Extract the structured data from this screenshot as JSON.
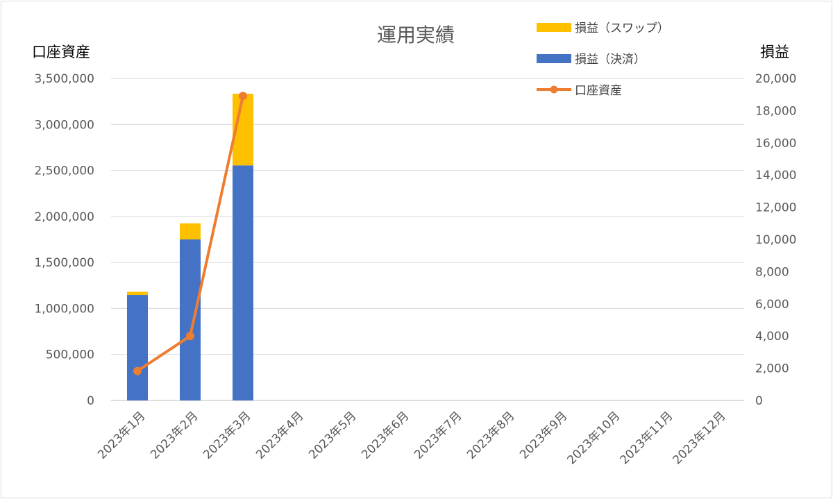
{
  "chart_data": {
    "type": "bar",
    "title": "運用実績",
    "categories": [
      "2023年1月",
      "2023年2月",
      "2023年3月",
      "2023年4月",
      "2023年5月",
      "2023年6月",
      "2023年7月",
      "2023年8月",
      "2023年9月",
      "2023年10月",
      "2023年11月",
      "2023年12月"
    ],
    "y_left": {
      "label": "口座資産",
      "lim": [
        0,
        3500000
      ],
      "ticks": [
        0,
        500000,
        1000000,
        1500000,
        2000000,
        2500000,
        3000000,
        3500000
      ],
      "tick_labels": [
        "0",
        "500,000",
        "1,000,000",
        "1,500,000",
        "2,000,000",
        "2,500,000",
        "3,000,000",
        "3,500,000"
      ]
    },
    "y_right": {
      "label": "損益",
      "lim": [
        0,
        20000
      ],
      "ticks": [
        0,
        2000,
        4000,
        6000,
        8000,
        10000,
        12000,
        14000,
        16000,
        18000,
        20000
      ],
      "tick_labels": [
        "0",
        "2,000",
        "4,000",
        "6,000",
        "8,000",
        "10,000",
        "12,000",
        "14,000",
        "16,000",
        "18,000",
        "20,000"
      ]
    },
    "series": [
      {
        "name": "損益（決済）",
        "kind": "bar-stacked",
        "axis": "right",
        "color": "#4472c4",
        "values": [
          6550,
          10000,
          14600,
          null,
          null,
          null,
          null,
          null,
          null,
          null,
          null,
          null
        ]
      },
      {
        "name": "損益（スワップ）",
        "kind": "bar-stacked",
        "axis": "right",
        "color": "#ffc000",
        "values": [
          200,
          1000,
          4450,
          null,
          null,
          null,
          null,
          null,
          null,
          null,
          null,
          null
        ]
      },
      {
        "name": "口座資産",
        "kind": "line",
        "axis": "left",
        "color": "#ed7d31",
        "values": [
          320000,
          700000,
          3310000,
          null,
          null,
          null,
          null,
          null,
          null,
          null,
          null,
          null
        ]
      }
    ],
    "legend_order": [
      "損益（スワップ）",
      "損益（決済）",
      "口座資産"
    ],
    "legend_position": "top-right",
    "grid": true
  }
}
